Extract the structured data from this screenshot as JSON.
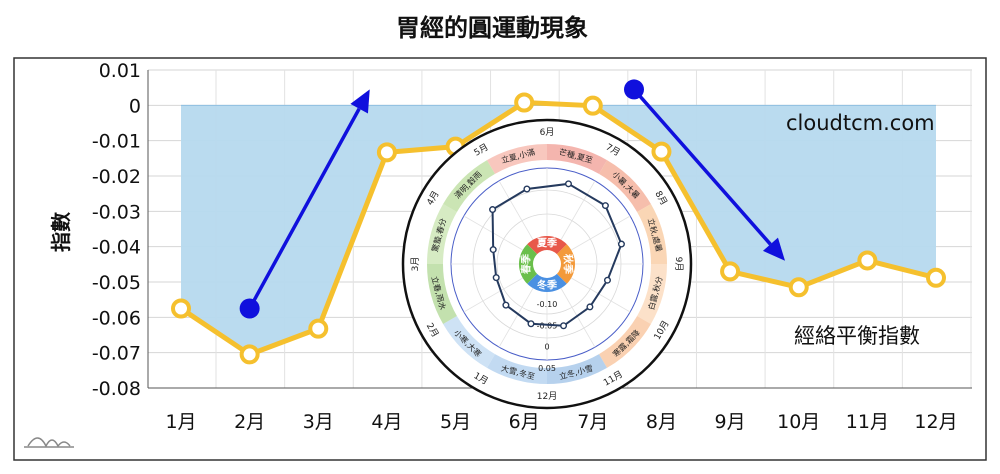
{
  "chart_data": {
    "type": "line",
    "title": "胃經的圓運動現象",
    "ylabel": "指數",
    "categories": [
      "1月",
      "2月",
      "3月",
      "4月",
      "5月",
      "6月",
      "7月",
      "8月",
      "9月",
      "10月",
      "11月",
      "12月"
    ],
    "series": [
      {
        "name": "經絡平衡指數",
        "values": [
          -0.0575,
          -0.0705,
          -0.0632,
          -0.0133,
          -0.0117,
          0.0008,
          -0.0001,
          -0.0131,
          -0.047,
          -0.0515,
          -0.0439,
          -0.0488
        ]
      }
    ],
    "ylim": [
      -0.08,
      0.01
    ],
    "yticks": [
      "0.01",
      "0",
      "-0.01",
      "-0.02",
      "-0.03",
      "-0.04",
      "-0.05",
      "-0.06",
      "-0.07",
      "-0.08"
    ],
    "grid": true,
    "series_label": "經絡平衡指數",
    "watermark": "cloudtcm.com",
    "colors": {
      "line": "#f5c02e",
      "fill": "#b6d9ee",
      "arrow": "#1010dd"
    },
    "arrows": [
      {
        "from": [
          1.0,
          -0.0575
        ],
        "to": [
          2.75,
          0.0045
        ]
      },
      {
        "from": [
          6.6,
          0.0045
        ],
        "to": [
          8.8,
          -0.044
        ]
      }
    ],
    "polar_inset": {
      "seasons": [
        "夏季",
        "秋季",
        "冬季",
        "春季"
      ],
      "solar_terms": [
        "芒種,夏至",
        "小暑,大暑",
        "立秋,處暑",
        "白露,秋分",
        "寒露,霜降",
        "立冬,小雪",
        "大雪,冬至",
        "小寒,大寒",
        "立春,雨水",
        "驚蟄,春分",
        "清明,穀雨",
        "立夏,小滿"
      ],
      "months": [
        "6月",
        "7月",
        "8月",
        "9月",
        "10月",
        "11月",
        "12月",
        "1月",
        "2月",
        "3月",
        "4月",
        "5月"
      ],
      "radial_ticks": [
        "-0.10",
        "-0.05",
        "0",
        "0.05"
      ],
      "values": [
        0.0008,
        -0.0001,
        -0.0131,
        -0.047,
        -0.0515,
        -0.0439,
        -0.0488,
        -0.0575,
        -0.0705,
        -0.0632,
        -0.0133,
        -0.0117
      ]
    }
  }
}
